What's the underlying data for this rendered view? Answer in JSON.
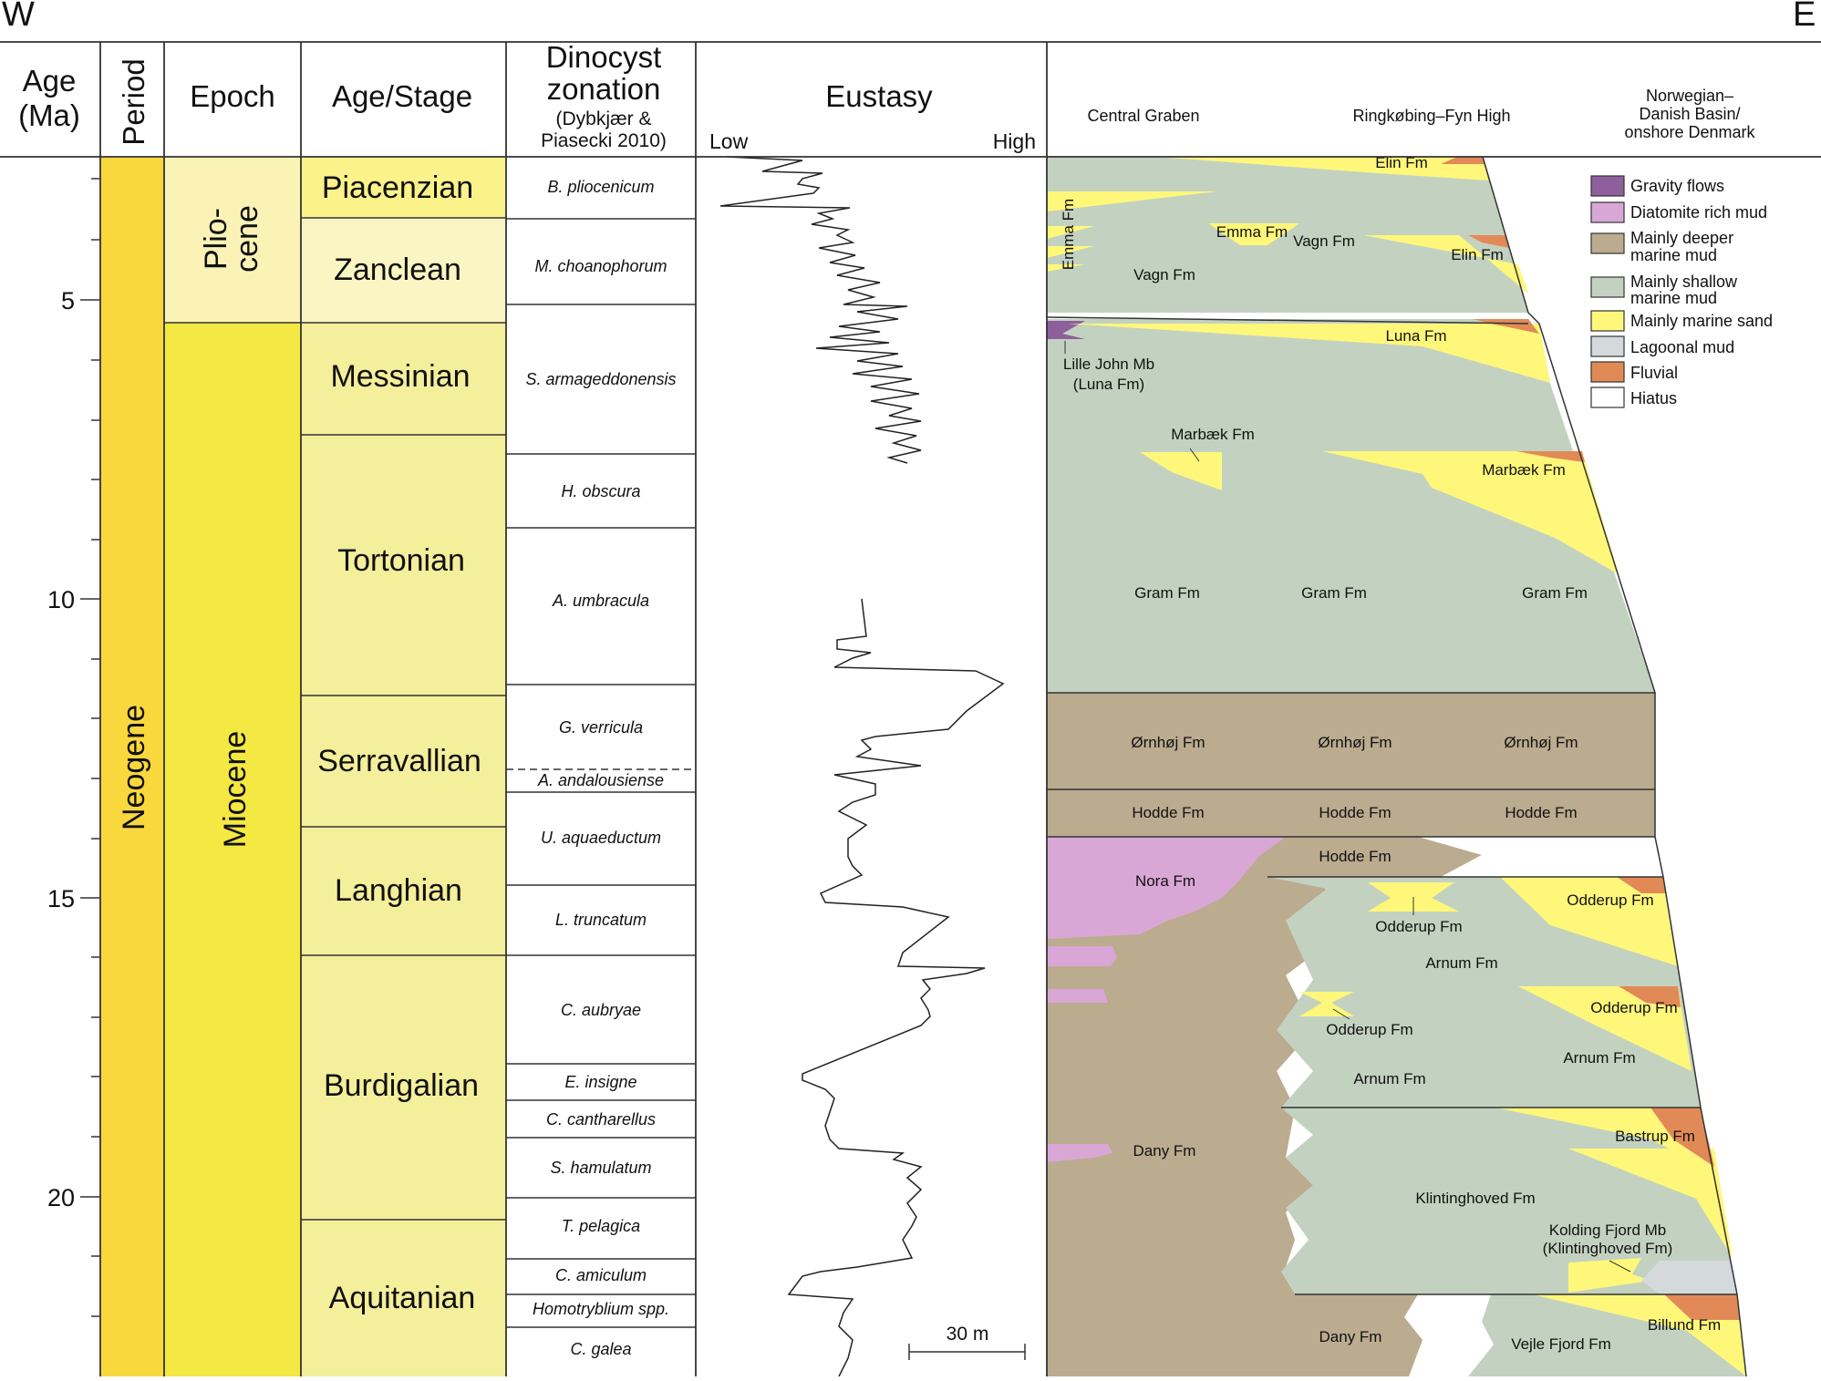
{
  "corners": {
    "west": "W",
    "east": "E"
  },
  "headers": {
    "age_line1": "Age",
    "age_line2": "(Ma)",
    "period": "Period",
    "epoch": "Epoch",
    "stage": "Age/Stage",
    "dino_line1": "Dinocyst",
    "dino_line2": "zonation",
    "dino_ref1": "(Dybkjær &",
    "dino_ref2": "Piasecki 2010)",
    "eustasy": "Eustasy",
    "eustasy_low": "Low",
    "eustasy_high": "High",
    "region_1": "Central Graben",
    "region_2": "Ringkøbing–Fyn High",
    "region_3a": "Norwegian–",
    "region_3b": "Danish Basin/",
    "region_3c": "onshore Denmark"
  },
  "age_axis": {
    "ticks": [
      "5",
      "10",
      "15",
      "20"
    ]
  },
  "periods": [
    {
      "name": "Neogene",
      "color": "#f9d83e"
    }
  ],
  "epochs": [
    {
      "name_line1": "Plio-",
      "name_line2": "cene",
      "color": "#fbf3b5"
    },
    {
      "name": "Miocene",
      "color": "#f4e842"
    }
  ],
  "stages": [
    {
      "name": "Piacenzian",
      "color": "#fbf28a",
      "start_ma": 2.6,
      "end_ma": 3.6
    },
    {
      "name": "Zanclean",
      "color": "#faf6c4",
      "start_ma": 3.6,
      "end_ma": 5.33
    },
    {
      "name": "Messinian",
      "color": "#f4ef9a",
      "start_ma": 5.33,
      "end_ma": 7.25
    },
    {
      "name": "Tortonian",
      "color": "#f4ef9a",
      "start_ma": 7.25,
      "end_ma": 11.6
    },
    {
      "name": "Serravallian",
      "color": "#f4ef9a",
      "start_ma": 11.6,
      "end_ma": 13.8
    },
    {
      "name": "Langhian",
      "color": "#f4ef9a",
      "start_ma": 13.8,
      "end_ma": 15.97
    },
    {
      "name": "Burdigalian",
      "color": "#f4ef9a",
      "start_ma": 15.97,
      "end_ma": 20.4
    },
    {
      "name": "Aquitanian",
      "color": "#f4ef9a",
      "start_ma": 20.4,
      "end_ma": 23.0
    }
  ],
  "dinocyst_zones": [
    "B. pliocenicum",
    "M. choanophorum",
    "S. armageddonensis",
    "H. obscura",
    "A. umbracula",
    "G. verricula",
    "A. andalousiense",
    "U. aquaeductum",
    "L. truncatum",
    "C. aubryae",
    "E. insigne",
    "C. cantharellus",
    "S. hamulatum",
    "T. pelagica",
    "C. amiculum",
    "Homotryblium spp.",
    "C. galea"
  ],
  "eustasy": {
    "scale_label": "30 m"
  },
  "legend": [
    {
      "label": "Gravity flows",
      "color": "#8e5f9d"
    },
    {
      "label": "Diatomite rich mud",
      "color": "#d9a7d6"
    },
    {
      "label_line1": "Mainly deeper",
      "label_line2": "marine mud",
      "color": "#bbab8f"
    },
    {
      "label_line1": "Mainly shallow",
      "label_line2": "marine mud",
      "color": "#c3d2c0"
    },
    {
      "label": "Mainly marine sand",
      "color": "#fff77a"
    },
    {
      "label": "Lagoonal mud",
      "color": "#d4dadc"
    },
    {
      "label": "Fluvial",
      "color": "#e28a57"
    },
    {
      "label": "Hiatus",
      "color": "#ffffff"
    }
  ],
  "units": {
    "elin_top": "Elin Fm",
    "emma_v": "Emma Fm",
    "emma": "Emma Fm",
    "vagn1": "Vagn Fm",
    "vagn2": "Vagn Fm",
    "elin2": "Elin Fm",
    "lille_john1": "Lille John Mb",
    "lille_john2": "(Luna Fm)",
    "luna": "Luna Fm",
    "marbaek1": "Marbæk Fm",
    "marbaek2": "Marbæk Fm",
    "gram1": "Gram Fm",
    "gram2": "Gram Fm",
    "gram3": "Gram Fm",
    "ornhoj1": "Ørnhøj Fm",
    "ornhoj2": "Ørnhøj Fm",
    "ornhoj3": "Ørnhøj Fm",
    "hodde1": "Hodde Fm",
    "hodde2": "Hodde Fm",
    "hodde3": "Hodde Fm",
    "hodde4": "Hodde Fm",
    "nora": "Nora Fm",
    "odderup1": "Odderup Fm",
    "odderup_right": "Odderup Fm",
    "arnum1": "Arnum Fm",
    "odderup2": "Odderup Fm",
    "odderup_right2": "Odderup Fm",
    "arnum2": "Arnum Fm",
    "arnum3": "Arnum Fm",
    "bastrup": "Bastrup Fm",
    "dany1": "Dany Fm",
    "klinting": "Klintinghoved Fm",
    "kolding1": "Kolding Fjord Mb",
    "kolding2": "(Klintinghoved Fm)",
    "billund": "Billund Fm",
    "dany2": "Dany Fm",
    "vejle": "Vejle Fjord Fm"
  }
}
